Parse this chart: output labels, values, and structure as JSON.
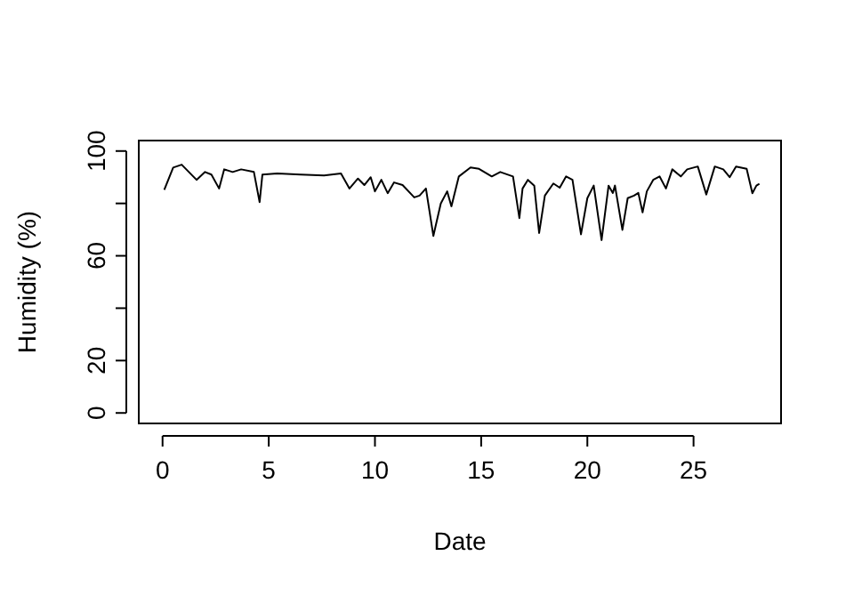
{
  "chart_data": {
    "type": "line",
    "xlabel": "Date",
    "ylabel": "Humidity (%)",
    "x": [
      0.08,
      0.5,
      0.9,
      1.6,
      2.0,
      2.3,
      2.66,
      2.9,
      3.3,
      3.7,
      4.3,
      4.57,
      4.7,
      5.4,
      6.5,
      7.6,
      8.4,
      8.8,
      9.2,
      9.5,
      9.8,
      10.0,
      10.3,
      10.6,
      10.9,
      11.3,
      11.85,
      12.1,
      12.4,
      12.75,
      13.1,
      13.4,
      13.6,
      13.95,
      14.5,
      14.9,
      15.5,
      15.9,
      16.5,
      16.8,
      16.95,
      17.2,
      17.5,
      17.73,
      18.0,
      18.4,
      18.7,
      19.0,
      19.3,
      19.7,
      20.0,
      20.3,
      20.67,
      21.0,
      21.2,
      21.3,
      21.65,
      21.9,
      22.2,
      22.4,
      22.6,
      22.8,
      23.1,
      23.4,
      23.7,
      24.0,
      24.4,
      24.7,
      25.2,
      25.6,
      26.0,
      26.4,
      26.7,
      27.0,
      27.5,
      27.77,
      27.96,
      28.1
    ],
    "series": [
      {
        "color": "#000000",
        "values": [
          85.2,
          93.7,
          94.8,
          89,
          92,
          91,
          85.7,
          93,
          92,
          93,
          92,
          80.5,
          91,
          91.4,
          91,
          90.7,
          91.4,
          85.7,
          89.5,
          87,
          90,
          84.6,
          89,
          83.9,
          88,
          87,
          82.3,
          83,
          85.7,
          67.6,
          80,
          84.6,
          78.9,
          90.3,
          93.7,
          93.2,
          90.3,
          92,
          90.3,
          74.4,
          85.7,
          89,
          86.8,
          68.7,
          83,
          87.6,
          86,
          90.3,
          89,
          68.2,
          82,
          86.8,
          66,
          86.8,
          84,
          86.8,
          69.9,
          82,
          83,
          84,
          76.6,
          84.6,
          89,
          90.3,
          85.7,
          93,
          90.3,
          93,
          94.1,
          83.4,
          94.1,
          93,
          90,
          94.1,
          93.2,
          83.9,
          86.8,
          87.5
        ]
      }
    ],
    "xlim": [
      -1.12,
      29.12
    ],
    "ylim": [
      -4,
      104
    ],
    "xticks": [
      0,
      5,
      10,
      15,
      20,
      25
    ],
    "yticks": [
      0,
      20,
      {
        "value": 40,
        "label": null
      },
      60,
      {
        "value": 80,
        "label": null
      },
      100
    ],
    "grid": false,
    "marker": "none",
    "line_style": "solid"
  }
}
